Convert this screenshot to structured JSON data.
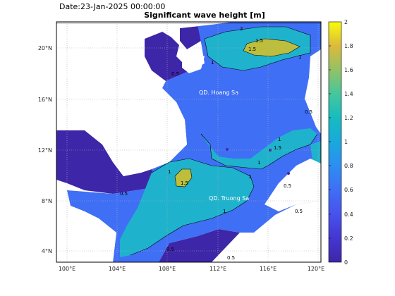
{
  "header": {
    "date_label": "Date:23-Jan-2025 00:00:00",
    "title": "Significant wave height [m]"
  },
  "map": {
    "x_ticks": [
      "100°E",
      "104°E",
      "108°E",
      "112°E",
      "116°E",
      "120°E"
    ],
    "y_ticks": [
      "20°N",
      "16°N",
      "12°N",
      "8°N",
      "4°N"
    ],
    "place_labels": [
      "QD. Hoang Sa",
      "QD. Truong Sa"
    ],
    "contour_labels": [
      "2",
      "1.5",
      "1.5",
      "1",
      "1",
      "1",
      "1",
      "1",
      "1",
      "1",
      "1.5",
      "1.5",
      "0.5",
      "0.5",
      "0.5",
      "0.5",
      "0.5",
      "0.5",
      "0.5"
    ]
  },
  "colorbar": {
    "ticks": [
      "2",
      "1.8",
      "1.6",
      "1.4",
      "1.2",
      "1",
      "0.8",
      "0.6",
      "0.4",
      "0.2",
      "0"
    ],
    "colors": {
      "low": "#3e26a8",
      "mid_low": "#3f6ff5",
      "mid": "#1fb2cc",
      "mid_high": "#56c09a",
      "high": "#bcbe3c",
      "top": "#f9fb0e"
    }
  }
}
